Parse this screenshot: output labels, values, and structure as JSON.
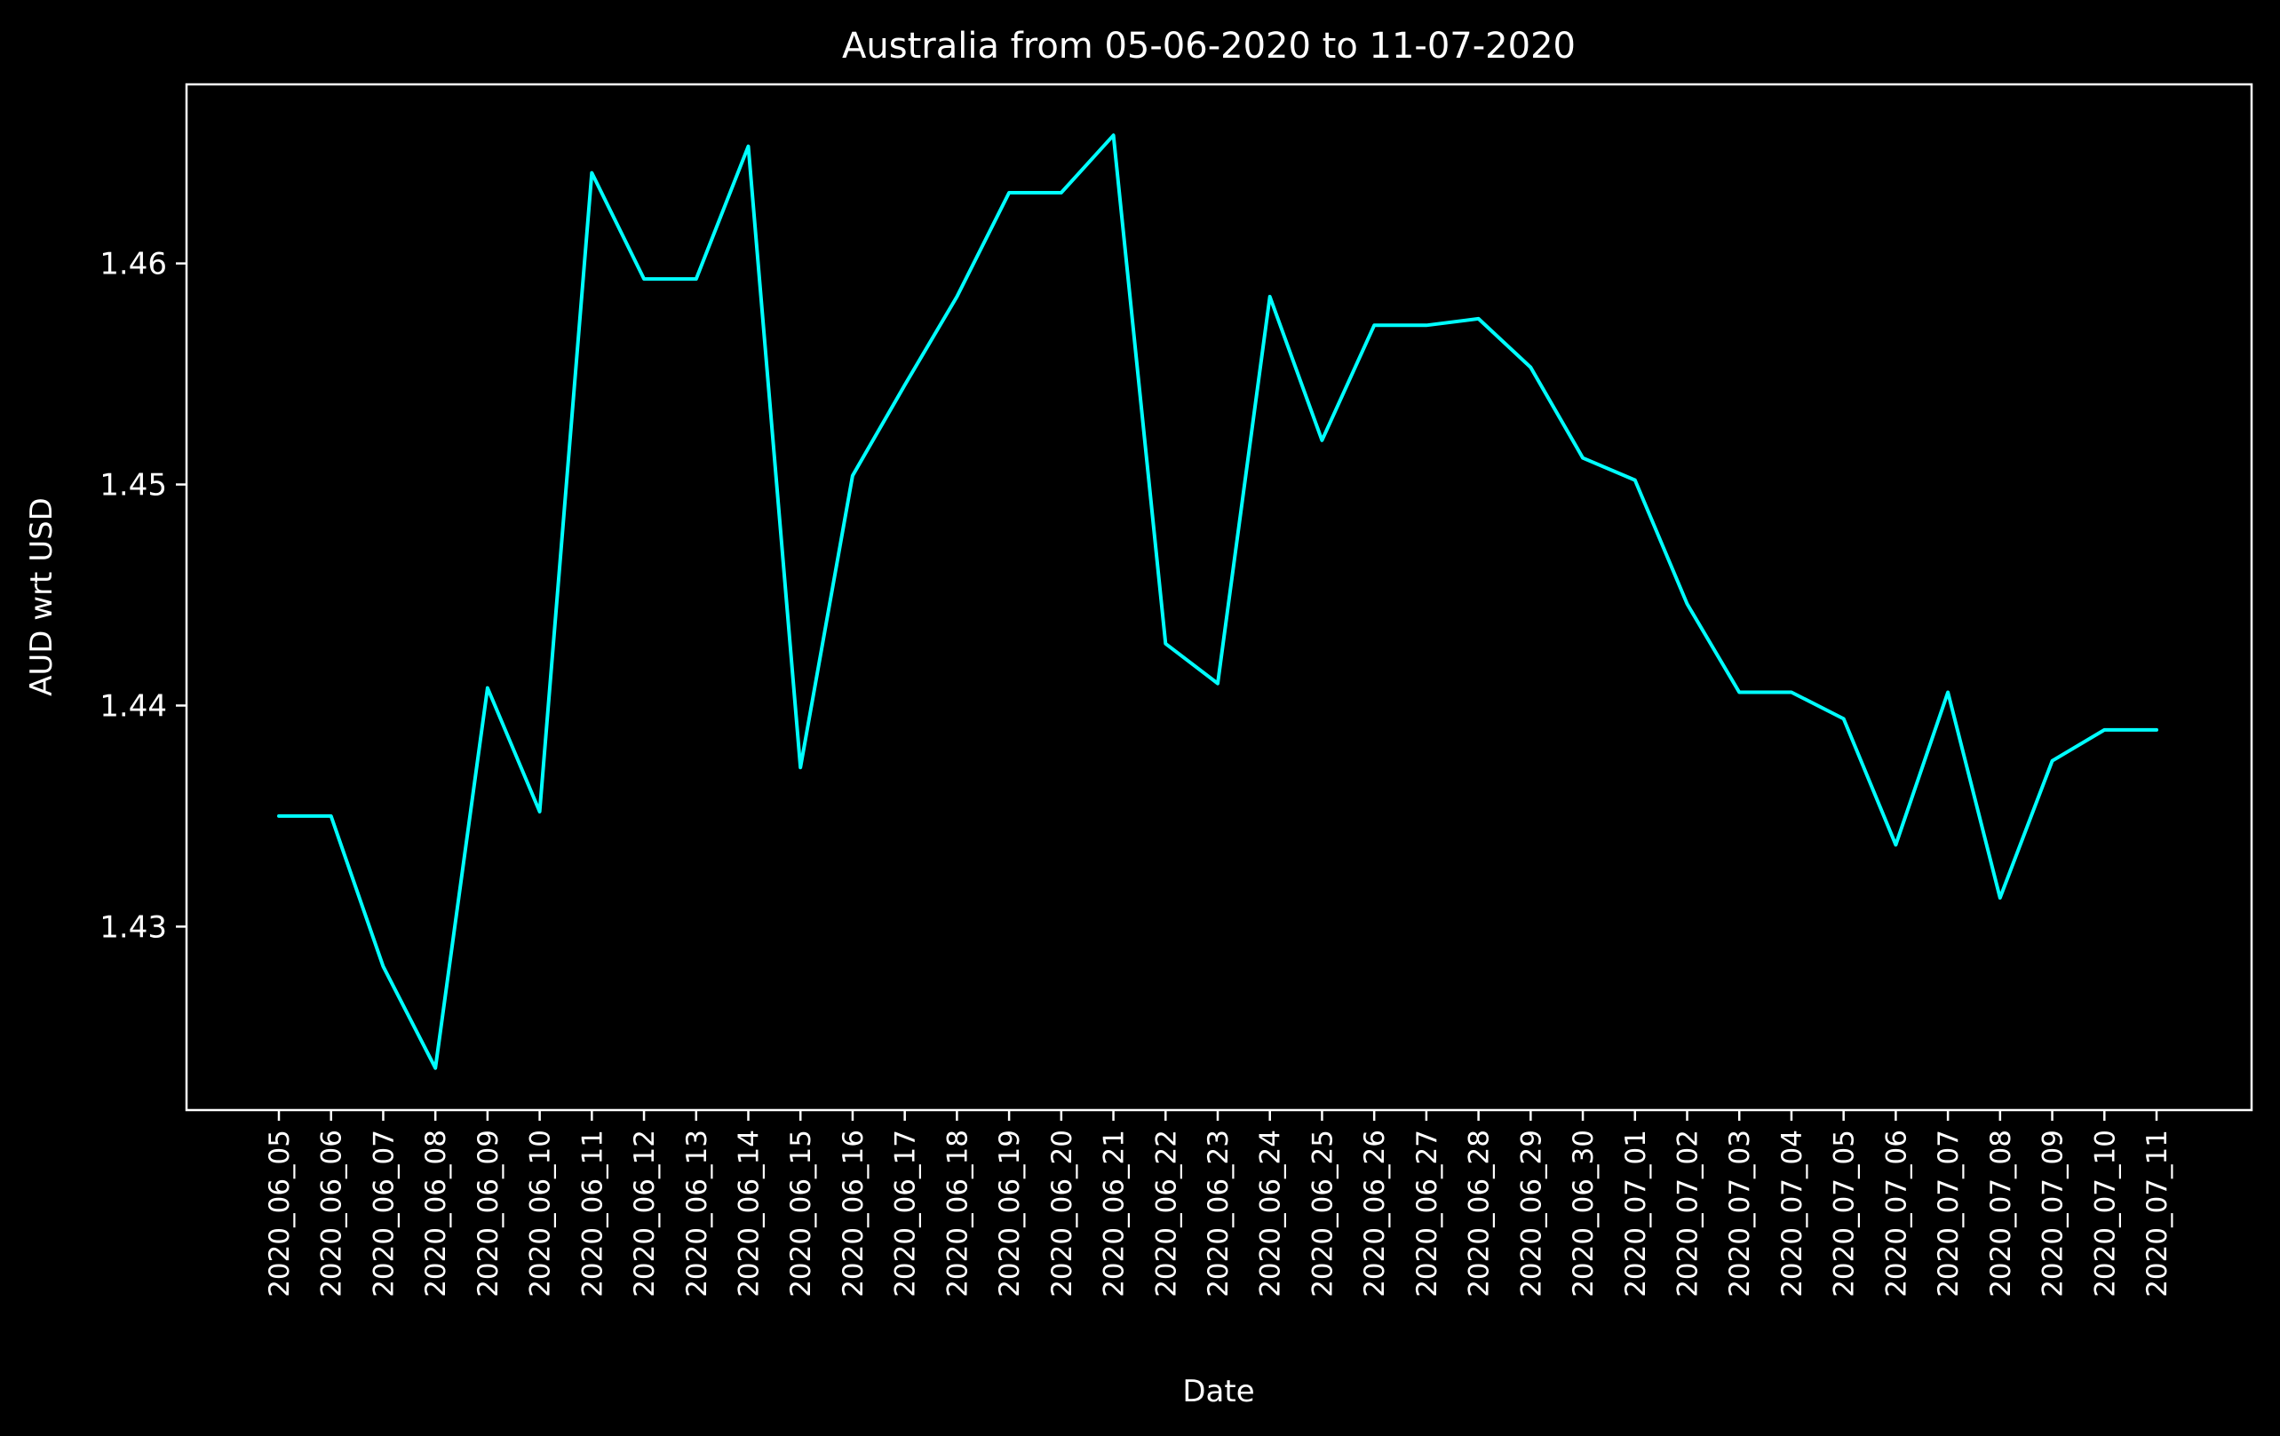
{
  "chart_data": {
    "type": "line",
    "title": "Australia from 05-06-2020 to 11-07-2020",
    "xlabel": "Date",
    "ylabel": "AUD wrt USD",
    "ylim": [
      1.4217,
      1.4681
    ],
    "yticks": [
      1.43,
      1.44,
      1.45,
      1.46
    ],
    "ytick_labels": [
      "1.43",
      "1.44",
      "1.45",
      "1.46"
    ],
    "grid": false,
    "legend": "none",
    "line_color": "#00ffff",
    "background_color": "#000000",
    "text_color": "#ffffff",
    "categories": [
      "2020_06_05",
      "2020_06_06",
      "2020_06_07",
      "2020_06_08",
      "2020_06_09",
      "2020_06_10",
      "2020_06_11",
      "2020_06_12",
      "2020_06_13",
      "2020_06_14",
      "2020_06_15",
      "2020_06_16",
      "2020_06_17",
      "2020_06_18",
      "2020_06_19",
      "2020_06_20",
      "2020_06_21",
      "2020_06_22",
      "2020_06_23",
      "2020_06_24",
      "2020_06_25",
      "2020_06_26",
      "2020_06_27",
      "2020_06_28",
      "2020_06_29",
      "2020_06_30",
      "2020_07_01",
      "2020_07_02",
      "2020_07_03",
      "2020_07_04",
      "2020_07_05",
      "2020_07_06",
      "2020_07_07",
      "2020_07_08",
      "2020_07_09",
      "2020_07_10",
      "2020_07_11"
    ],
    "series": [
      {
        "values": [
          1.435,
          1.435,
          1.4282,
          1.4236,
          1.4408,
          1.4352,
          1.4641,
          1.4593,
          1.4593,
          1.4653,
          1.4372,
          1.4504,
          1.4545,
          1.4585,
          1.4632,
          1.4632,
          1.4658,
          1.4428,
          1.441,
          1.4585,
          1.452,
          1.4572,
          1.4572,
          1.4575,
          1.4553,
          1.4512,
          1.4502,
          1.4446,
          1.4406,
          1.4406,
          1.4394,
          1.4337,
          1.4406,
          1.4313,
          1.4375,
          1.4389,
          1.4389
        ]
      }
    ]
  }
}
